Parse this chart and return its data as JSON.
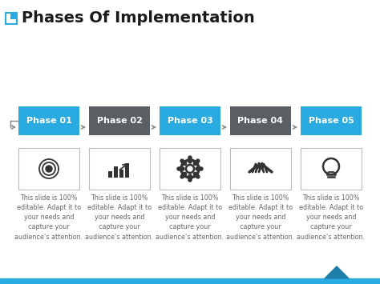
{
  "title": "Phases Of Implementation",
  "title_fontsize": 14,
  "title_color": "#1a1a1a",
  "background_color": "#ffffff",
  "phases": [
    "Phase 01",
    "Phase 02",
    "Phase 03",
    "Phase 04",
    "Phase 05"
  ],
  "phase_colors": [
    "#29ABE2",
    "#5a5f63",
    "#29ABE2",
    "#5a5f63",
    "#29ABE2"
  ],
  "body_text": "This slide is 100%\neditable. Adapt it to\nyour needs and\ncapture your\naudience’s attention.",
  "bottom_bar_color": "#29ABE2",
  "triangle_color": "#1e7fa8",
  "border_color": "#cccccc",
  "text_color": "#666666",
  "text_fontsize": 5.8,
  "phase_label_fontsize": 8.0,
  "teal_color": "#29ABE2",
  "icon_color": "#333333"
}
